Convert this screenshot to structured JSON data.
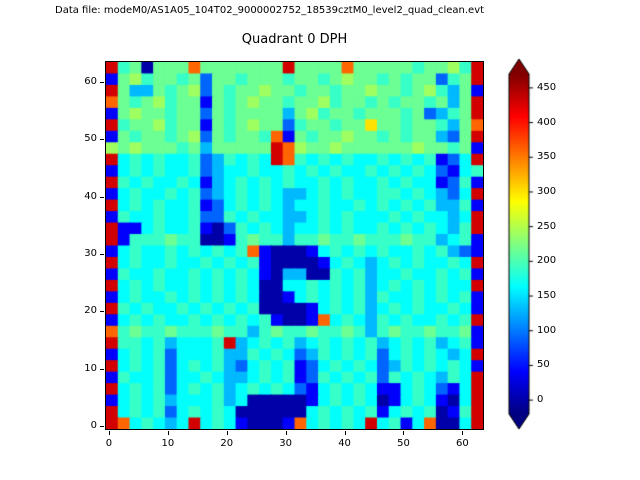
{
  "header": {
    "datafile_label": "Data file: modeM0/AS1A05_104T02_9000002752_18539cztM0_level2_quad_clean.evt"
  },
  "chart_data": {
    "type": "heatmap",
    "title": "Quadrant 0 DPH",
    "xlabel": "",
    "ylabel": "",
    "x_ticks": [
      0,
      10,
      20,
      30,
      40,
      50,
      60
    ],
    "y_ticks": [
      0,
      10,
      20,
      30,
      40,
      50,
      60
    ],
    "x_range": [
      0,
      64
    ],
    "y_range": [
      0,
      64
    ],
    "grid_size": [
      64,
      64
    ],
    "data_resolution": [
      32,
      32
    ],
    "colormap": "jet",
    "vmin": -20,
    "vmax": 470,
    "colorbar_ticks": [
      0,
      50,
      100,
      150,
      200,
      250,
      300,
      350,
      400,
      450
    ],
    "colorbar_extend": "both",
    "background_color": "#ffffff",
    "value_legend": {
      "D": 0,
      "N": 40,
      "B": 90,
      "b": 130,
      "t": 165,
      "c": 190,
      "g": 215,
      "G": 240,
      "Y": 300,
      "O": 360,
      "R": 430
    },
    "rows": [
      "RcgDgggOgggggggRggggOgggggcggGcR",
      "NgGcggcgBggcgggcggcgGggcgcggBcgR",
      "RgbbgcgGBgcggGggcggcggGggcgGcbgN",
      "OgcgGcggNgcgGggcggGcggcgcggcgbgR",
      "NgGggcggBgcggggbgGcggcgggcgBbcgR",
      "RcggGcggNgcgGggBcggcggYggcggcbgO",
      "NgcggcgGBgcggcONgcggGggcgcggbBgR",
      "GgGgggcgbgggggROGggGggggggGggcgN",
      "RtctcttcBbctctROctctcttctctcNBtR",
      "NtctcttcBbttcttctctcttctctctBNtc",
      "RctcttctNbtctctcttctcttctcttNBcN",
      "NtcttctcBbtctctbbtctcttcctctbBtR",
      "RtctcttcNBtctctbttcttctctctcbbcN",
      "NcttcttcBBctcttbbtctctttctcttbtR",
      "RNNtcttcNDBctctbttctcttctctctbcR",
      "RNcccgccDDNcgccbccgccgcccgccbtcN",
      "NtcttctctctcONDDDNtctctcttctcbBN",
      "RtcttcttctctcNDDDDNtctbtctcttctR",
      "NcttcttctctctNDbbDDctcbttcttctcN",
      "RtctcttctctctDDttctctcbtctctcttR",
      "NtcttctctctctDDNtctctcbcttctctcN",
      "RctcttctctctcDDDDNtctcbtctcttctN",
      "NtctcttctctctcNDDNOtctbctcttctcR",
      "OcgccgcccgccbcgccgccgcbcgccgccgN",
      "RcctcbtttcRbtctcbtctctcbtctcbtcN",
      "NtctcBtttcbbctctBbctctcBtctctbtR",
      "RtctcBtctcbBtctcNBtctctBbctctctN",
      "NcttcBttctbbtctcNBctctcBctctbctR",
      "RtctcBtctcbtctctBNtctctNNtctBNtR",
      "NtctcbtttcbtDDDDDNtctctDNtctNDtR",
      "RtctcBtctctDDDDDDtctctcNtctcDNcR",
      "ROtctbtRtctNDDDNOtctctRtcNtODDtR"
    ]
  }
}
